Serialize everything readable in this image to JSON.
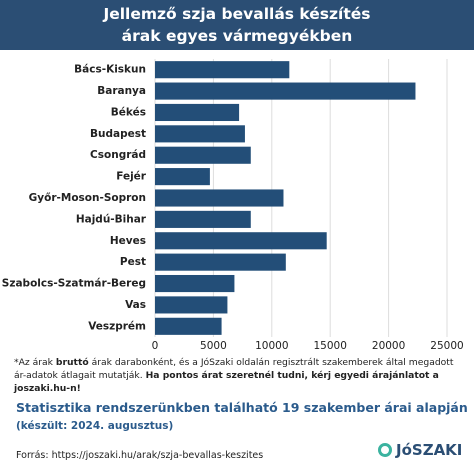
{
  "header": {
    "title_lines": [
      "Jellemző szja bevallás készítés",
      "árak egyes vármegyékben"
    ]
  },
  "chart_data": {
    "type": "bar",
    "orientation": "horizontal",
    "categories": [
      "Bács-Kiskun",
      "Baranya",
      "Békés",
      "Budapest",
      "Csongrád",
      "Fejér",
      "Győr-Moson-Sopron",
      "Hajdú-Bihar",
      "Heves",
      "Pest",
      "Szabolcs-Szatmár-Bereg",
      "Vas",
      "Veszprém"
    ],
    "values": [
      11500,
      22300,
      7200,
      7700,
      8200,
      4700,
      11000,
      8200,
      14700,
      11200,
      6800,
      6200,
      5700
    ],
    "color": "#234e78",
    "xlim": [
      0,
      25000
    ],
    "xticks": [
      0,
      5000,
      10000,
      15000,
      20000,
      25000
    ],
    "grid": true
  },
  "note": [
    "*Az árak ",
    "bruttó",
    " árak darabonként, és a JóSzaki oldalán regisztrált szakemberek által megadott ár-adatok átlagait mutatják. ",
    "Ha pontos árat szeretnél tudni, kérj egyedi árajánlatot a joszaki.hu-n!"
  ],
  "stats": "Statisztika rendszerünkben található 19 szakember árai alapján",
  "date": "(készült: 2024. augusztus)",
  "source": "Forrás: https://joszaki.hu/arak/szja-bevallas-keszites",
  "logo": "JóSZAKI"
}
